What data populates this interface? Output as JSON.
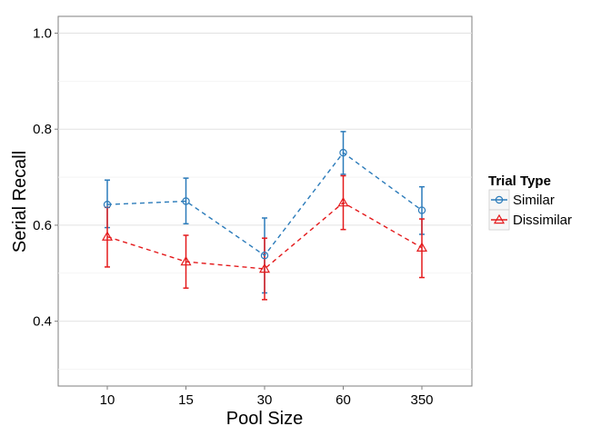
{
  "chart_data": {
    "type": "line",
    "title": "",
    "xlabel": "Pool Size",
    "ylabel": "Serial Recall",
    "categories": [
      "10",
      "15",
      "30",
      "60",
      "350"
    ],
    "ylim": [
      0.265,
      1.035
    ],
    "yticks": [
      "0.4",
      "0.6",
      "0.8",
      "1.0"
    ],
    "ytick_values": [
      0.4,
      0.6,
      0.8,
      1.0
    ],
    "grid": true,
    "legend": {
      "title": "Trial Type",
      "position": "right"
    },
    "series": [
      {
        "name": "Similar",
        "color": "#2b7bba",
        "marker": "circle",
        "line_style": "dashed",
        "values": [
          0.643,
          0.65,
          0.537,
          0.751,
          0.631
        ],
        "error_low": [
          0.595,
          0.603,
          0.459,
          0.706,
          0.581
        ],
        "error_high": [
          0.694,
          0.698,
          0.615,
          0.795,
          0.68
        ]
      },
      {
        "name": "Dissimilar",
        "color": "#e41a1c",
        "marker": "triangle",
        "line_style": "dashed",
        "values": [
          0.576,
          0.524,
          0.509,
          0.647,
          0.553
        ],
        "error_low": [
          0.513,
          0.469,
          0.445,
          0.591,
          0.491
        ],
        "error_high": [
          0.637,
          0.579,
          0.573,
          0.703,
          0.613
        ]
      }
    ]
  }
}
